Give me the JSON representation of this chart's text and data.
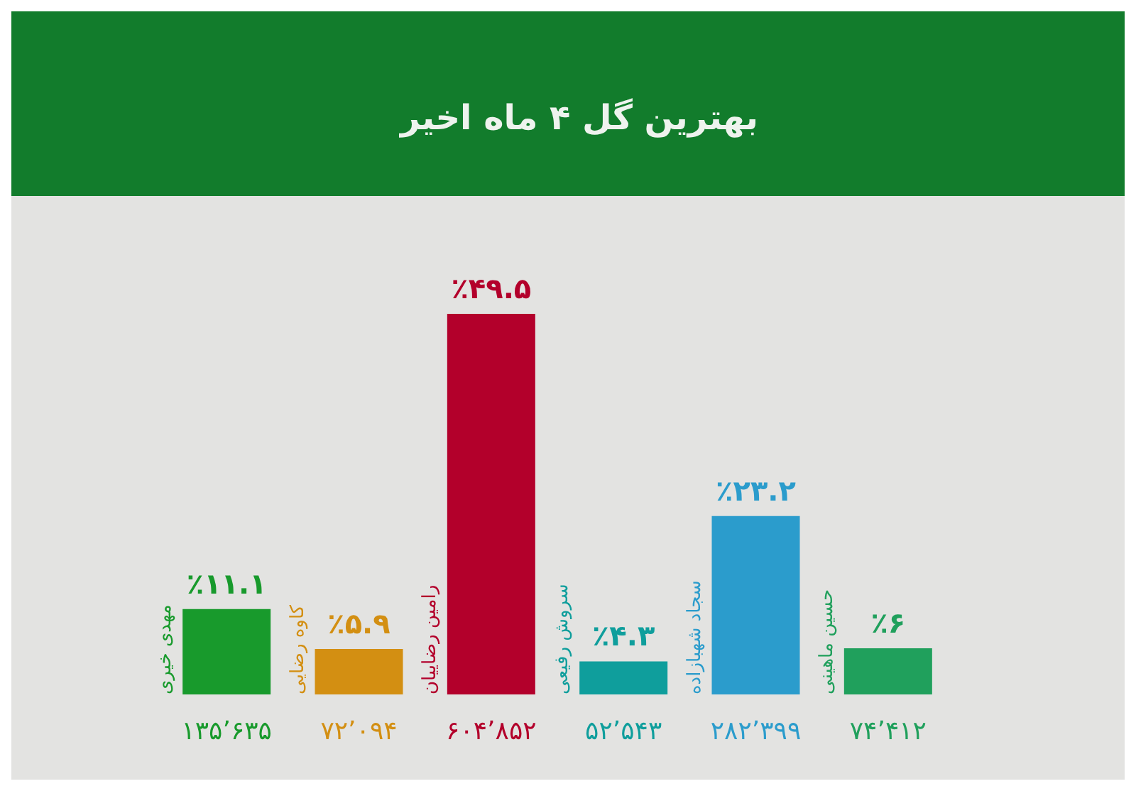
{
  "chart_data": {
    "type": "bar",
    "title": "بهترین گل ۴ ماه اخیر",
    "categories": [
      "مهدی خیری",
      "کاوه رضایی",
      "رامین رضاییان",
      "سروش رفیعی",
      "سجاد شهبازاده",
      "حسین ماهینی"
    ],
    "values": [
      11.1,
      5.9,
      49.5,
      4.3,
      23.2,
      6
    ],
    "colors": [
      "#189a2c",
      "#d38f12",
      "#b3002b",
      "#0f9e9c",
      "#2b9ccc",
      "#20a05c"
    ],
    "value_labels": [
      "٪۱۱.۱",
      "٪۵.۹",
      "٪۴۹.۵",
      "٪۴.۳",
      "٪۲۳.۲",
      "٪۶"
    ],
    "annotations": [
      "۱۳۵٬۶۳۵",
      "۷۲٬۰۹۴",
      "۶۰۴٬۸۵۲",
      "۵۲٬۵۴۳",
      "۲۸۲٬۳۹۹",
      "۷۴٬۴۱۲"
    ]
  }
}
